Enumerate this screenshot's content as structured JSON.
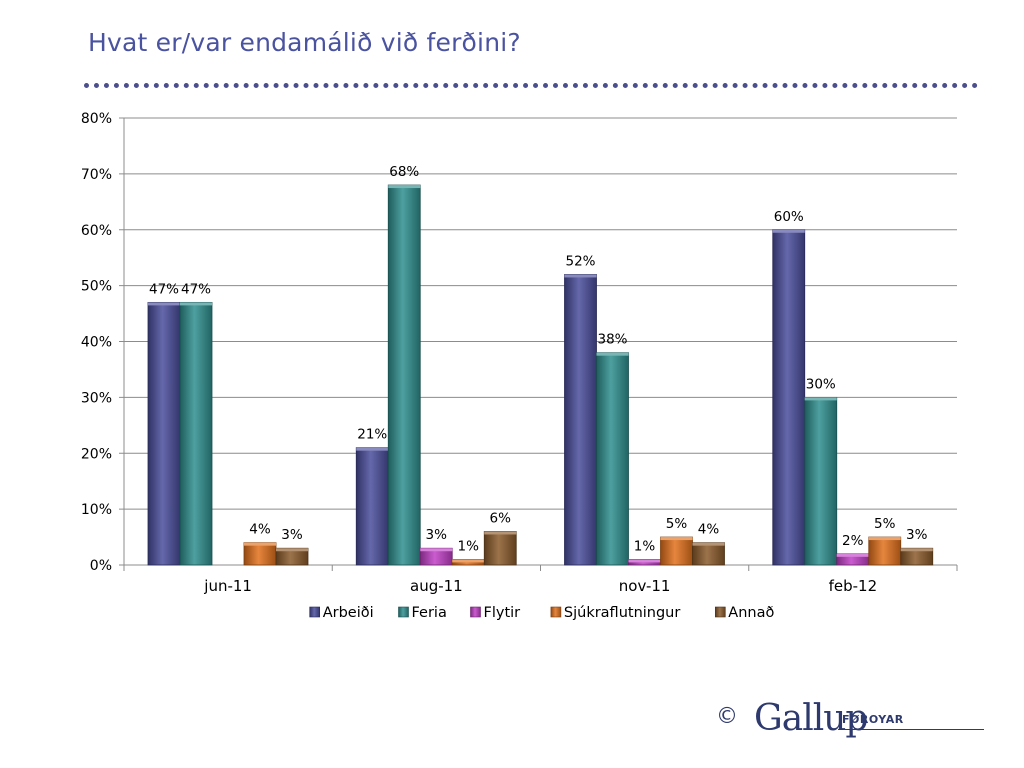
{
  "title": "Hvat er/var endamálið við ferðini?",
  "chart_data": {
    "type": "bar",
    "categories": [
      "jun-11",
      "aug-11",
      "nov-11",
      "feb-12"
    ],
    "series": [
      {
        "name": "Arbeiði",
        "color": "#4a4d9c",
        "values": [
          47,
          21,
          52,
          60
        ],
        "labels": [
          "47%",
          "21%",
          "52%",
          "60%"
        ]
      },
      {
        "name": "Feria",
        "color": "#2f8f8f",
        "values": [
          47,
          68,
          38,
          30
        ],
        "labels": [
          "47%",
          "68%",
          "38%",
          "30%"
        ]
      },
      {
        "name": "Flytir",
        "color": "#c13fc7",
        "values": [
          0,
          3,
          1,
          2
        ],
        "labels": [
          "",
          "3%",
          "1%",
          "2%"
        ]
      },
      {
        "name": "Sjúkraflutningur",
        "color": "#e2711c",
        "values": [
          4,
          1,
          5,
          5
        ],
        "labels": [
          "4%",
          "1%",
          "5%",
          "5%"
        ]
      },
      {
        "name": "Annað",
        "color": "#8b5a2b",
        "values": [
          3,
          6,
          4,
          3
        ],
        "labels": [
          "3%",
          "6%",
          "4%",
          "3%"
        ]
      }
    ],
    "ylim": [
      0,
      80
    ],
    "yticks": [
      "0%",
      "10%",
      "20%",
      "30%",
      "40%",
      "50%",
      "60%",
      "70%",
      "80%"
    ],
    "ytick_values": [
      0,
      10,
      20,
      30,
      40,
      50,
      60,
      70,
      80
    ],
    "grid": true,
    "legend_position": "bottom"
  },
  "footer": {
    "copyright": "©",
    "logo": "Gallup",
    "logo_sub": "FØROYAR"
  }
}
